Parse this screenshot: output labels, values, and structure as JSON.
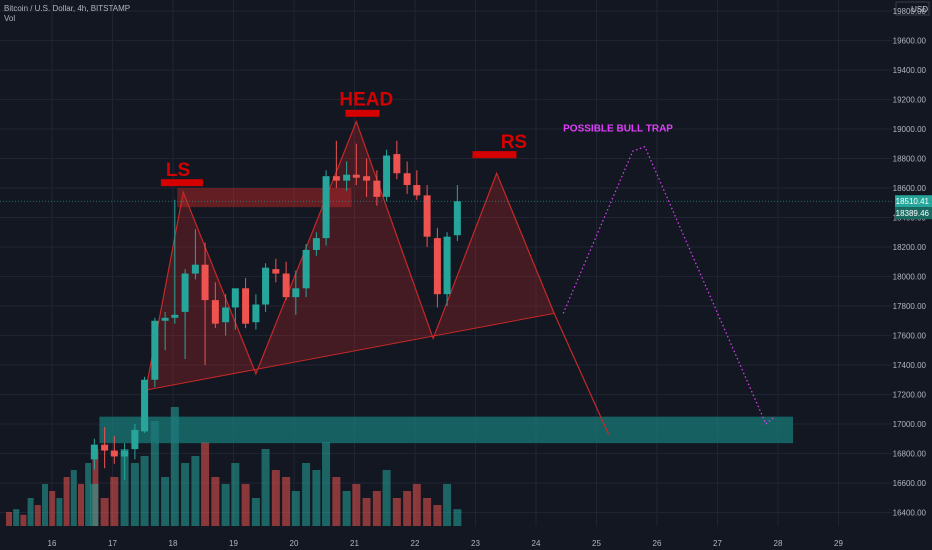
{
  "header": {
    "title": "Bitcoin / U.S. Dollar, 4h, BITSTAMP",
    "indicator": "Vol"
  },
  "price_axis": {
    "currency": "USD",
    "labels": [
      "19800.00",
      "19600.00",
      "19400.00",
      "19200.00",
      "19000.00",
      "18800.00",
      "18600.00",
      "18400.00",
      "18200.00",
      "18000.00",
      "17800.00",
      "17600.00",
      "17400.00",
      "17200.00",
      "17000.00",
      "16800.00",
      "16600.00",
      "16400.00"
    ],
    "last_price": "18510.41",
    "second_price": "18389.46"
  },
  "time_axis": {
    "labels": [
      "16",
      "17",
      "18",
      "19",
      "20",
      "21",
      "22",
      "23",
      "24",
      "25",
      "26",
      "27",
      "28",
      "29"
    ]
  },
  "annotations": {
    "ls": "LS",
    "head": "HEAD",
    "rs": "RS",
    "bull_trap": "POSSIBLE BULL TRAP"
  },
  "colors": {
    "background": "#131722",
    "up": "#26a69a",
    "down": "#ef5350",
    "pattern": "#c62828",
    "support_zone": "#1a7a78",
    "bull_trap": "#e040fb"
  },
  "chart_data": {
    "type": "candlestick",
    "symbol": "Bitcoin / U.S. Dollar",
    "interval": "4h",
    "exchange": "BITSTAMP",
    "ylim": [
      16300,
      19900
    ],
    "x_range_days": [
      15.3,
      29.4
    ],
    "candles": [
      {
        "t": 16.7,
        "o": 16760,
        "h": 16900,
        "l": 16690,
        "c": 16860
      },
      {
        "t": 16.87,
        "o": 16860,
        "h": 16980,
        "l": 16700,
        "c": 16820
      },
      {
        "t": 17.03,
        "o": 16820,
        "h": 16920,
        "l": 16730,
        "c": 16780
      },
      {
        "t": 17.2,
        "o": 16780,
        "h": 16870,
        "l": 16620,
        "c": 16820
      },
      {
        "t": 17.37,
        "o": 16830,
        "h": 17000,
        "l": 16760,
        "c": 16960
      },
      {
        "t": 17.53,
        "o": 16950,
        "h": 17320,
        "l": 16940,
        "c": 17300
      },
      {
        "t": 17.7,
        "o": 17300,
        "h": 17720,
        "l": 17250,
        "c": 17700
      },
      {
        "t": 17.87,
        "o": 17700,
        "h": 17760,
        "l": 17500,
        "c": 17720
      },
      {
        "t": 18.03,
        "o": 17720,
        "h": 18520,
        "l": 17680,
        "c": 17740
      },
      {
        "t": 18.2,
        "o": 17760,
        "h": 18050,
        "l": 17440,
        "c": 18020
      },
      {
        "t": 18.37,
        "o": 18020,
        "h": 18320,
        "l": 17980,
        "c": 18080
      },
      {
        "t": 18.53,
        "o": 18080,
        "h": 18230,
        "l": 17400,
        "c": 17840
      },
      {
        "t": 18.7,
        "o": 17840,
        "h": 17960,
        "l": 17650,
        "c": 17680
      },
      {
        "t": 18.87,
        "o": 17690,
        "h": 17880,
        "l": 17600,
        "c": 17790
      },
      {
        "t": 19.03,
        "o": 17790,
        "h": 17900,
        "l": 17640,
        "c": 17920
      },
      {
        "t": 19.2,
        "o": 17920,
        "h": 17990,
        "l": 17650,
        "c": 17680
      },
      {
        "t": 19.37,
        "o": 17690,
        "h": 17880,
        "l": 17640,
        "c": 17810
      },
      {
        "t": 19.53,
        "o": 17810,
        "h": 18090,
        "l": 17760,
        "c": 18060
      },
      {
        "t": 19.7,
        "o": 18050,
        "h": 18120,
        "l": 17960,
        "c": 18020
      },
      {
        "t": 19.87,
        "o": 18020,
        "h": 18100,
        "l": 17840,
        "c": 17860
      },
      {
        "t": 20.03,
        "o": 17860,
        "h": 18040,
        "l": 17740,
        "c": 17920
      },
      {
        "t": 20.2,
        "o": 17920,
        "h": 18220,
        "l": 17860,
        "c": 18180
      },
      {
        "t": 20.37,
        "o": 18180,
        "h": 18300,
        "l": 18140,
        "c": 18260
      },
      {
        "t": 20.53,
        "o": 18260,
        "h": 18720,
        "l": 18210,
        "c": 18680
      },
      {
        "t": 20.7,
        "o": 18680,
        "h": 18920,
        "l": 18600,
        "c": 18650
      },
      {
        "t": 20.87,
        "o": 18650,
        "h": 18780,
        "l": 18580,
        "c": 18690
      },
      {
        "t": 21.03,
        "o": 18690,
        "h": 18900,
        "l": 18620,
        "c": 18670
      },
      {
        "t": 21.2,
        "o": 18680,
        "h": 18800,
        "l": 18540,
        "c": 18650
      },
      {
        "t": 21.37,
        "o": 18650,
        "h": 18720,
        "l": 18480,
        "c": 18540
      },
      {
        "t": 21.53,
        "o": 18540,
        "h": 18860,
        "l": 18510,
        "c": 18820
      },
      {
        "t": 21.7,
        "o": 18830,
        "h": 18920,
        "l": 18660,
        "c": 18700
      },
      {
        "t": 21.87,
        "o": 18700,
        "h": 18780,
        "l": 18560,
        "c": 18620
      },
      {
        "t": 22.03,
        "o": 18620,
        "h": 18720,
        "l": 18520,
        "c": 18550
      },
      {
        "t": 22.2,
        "o": 18550,
        "h": 18620,
        "l": 18200,
        "c": 18270
      },
      {
        "t": 22.37,
        "o": 18260,
        "h": 18330,
        "l": 17790,
        "c": 17880
      },
      {
        "t": 22.53,
        "o": 17880,
        "h": 18300,
        "l": 17800,
        "c": 18270
      },
      {
        "t": 22.7,
        "o": 18280,
        "h": 18620,
        "l": 18240,
        "c": 18510
      }
    ],
    "volume_relative": [
      0.3,
      0.2,
      0.35,
      0.55,
      0.45,
      0.5,
      0.75,
      0.35,
      0.85,
      0.45,
      0.5,
      0.6,
      0.35,
      0.3,
      0.45,
      0.3,
      0.2,
      0.55,
      0.4,
      0.35,
      0.25,
      0.45,
      0.4,
      0.6,
      0.35,
      0.25,
      0.3,
      0.2,
      0.25,
      0.4,
      0.2,
      0.25,
      0.3,
      0.2,
      0.15,
      0.3,
      0.12
    ],
    "support_zone": {
      "from": 16870,
      "to": 17050,
      "start_day": 16.85,
      "end_day": 28.15
    },
    "lines": {
      "last_price": 18510.41
    }
  }
}
